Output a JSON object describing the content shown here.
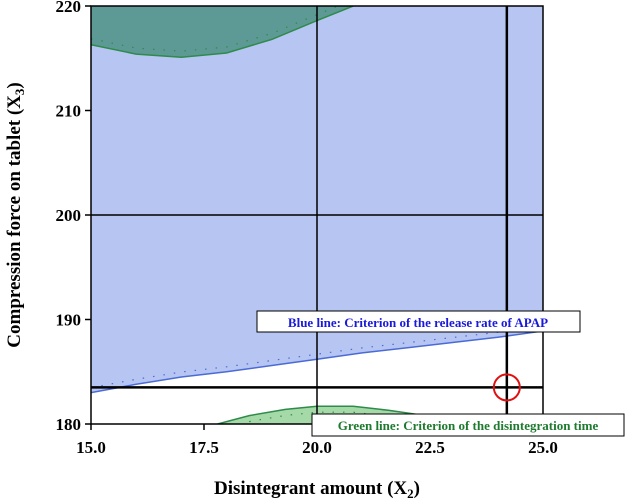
{
  "chart_data": {
    "type": "contour",
    "xlabel": "Disintegrant amount (X",
    "xlabel_sub": "2",
    "xlabel_end": ")",
    "ylabel": "Compression force on tablet (X",
    "ylabel_sub": "3",
    "ylabel_end": ")",
    "xlim": [
      15.0,
      25.0
    ],
    "ylim": [
      180,
      220
    ],
    "x_ticks": [
      "15.0",
      "17.5",
      "20.0",
      "22.5",
      "25.0"
    ],
    "x_tick_values": [
      15.0,
      17.5,
      20.0,
      22.5,
      25.0
    ],
    "y_ticks": [
      "180",
      "190",
      "200",
      "210",
      "220"
    ],
    "y_tick_values": [
      180,
      190,
      200,
      210,
      220
    ],
    "gridlines_x": [
      20.0
    ],
    "gridlines_y": [
      200
    ],
    "reference_lines": {
      "x": 24.2,
      "y": 183.5
    },
    "selected_point": {
      "x": 24.2,
      "y": 183.5
    },
    "regions": [
      {
        "name": "release-rate-region",
        "fill": "#b7c5f3",
        "stroke": "#4a6bd6",
        "boundary": [
          [
            15.0,
            183.0
          ],
          [
            16.0,
            183.8
          ],
          [
            17.0,
            184.5
          ],
          [
            18.0,
            185.0
          ],
          [
            19.0,
            185.6
          ],
          [
            20.0,
            186.2
          ],
          [
            21.0,
            186.8
          ],
          [
            22.0,
            187.3
          ],
          [
            23.0,
            187.8
          ],
          [
            24.0,
            188.3
          ],
          [
            25.0,
            188.9
          ]
        ]
      },
      {
        "name": "disintegration-region-top",
        "fill": "#5e9a95",
        "stroke": "#2e8b4a",
        "boundary": [
          [
            15.0,
            216.3
          ],
          [
            16.0,
            215.4
          ],
          [
            17.0,
            215.1
          ],
          [
            18.0,
            215.5
          ],
          [
            19.0,
            216.8
          ],
          [
            20.0,
            218.6
          ],
          [
            20.8,
            220.0
          ]
        ]
      },
      {
        "name": "disintegration-region-bottom",
        "fill": "#a6d9a8",
        "stroke": "#2e8b4a",
        "boundary": [
          [
            17.8,
            180.0
          ],
          [
            18.5,
            180.8
          ],
          [
            19.3,
            181.4
          ],
          [
            20.0,
            181.7
          ],
          [
            20.8,
            181.7
          ],
          [
            21.6,
            181.3
          ],
          [
            22.4,
            180.8
          ],
          [
            23.2,
            180.3
          ],
          [
            23.8,
            180.0
          ]
        ]
      }
    ],
    "annotations": [
      {
        "text": "Blue line: Criterion of the release rate of APAP",
        "color": "#1a1ad9"
      },
      {
        "text": "Green line: Criterion of the disintegration time",
        "color": "#1e7a2e"
      }
    ]
  }
}
